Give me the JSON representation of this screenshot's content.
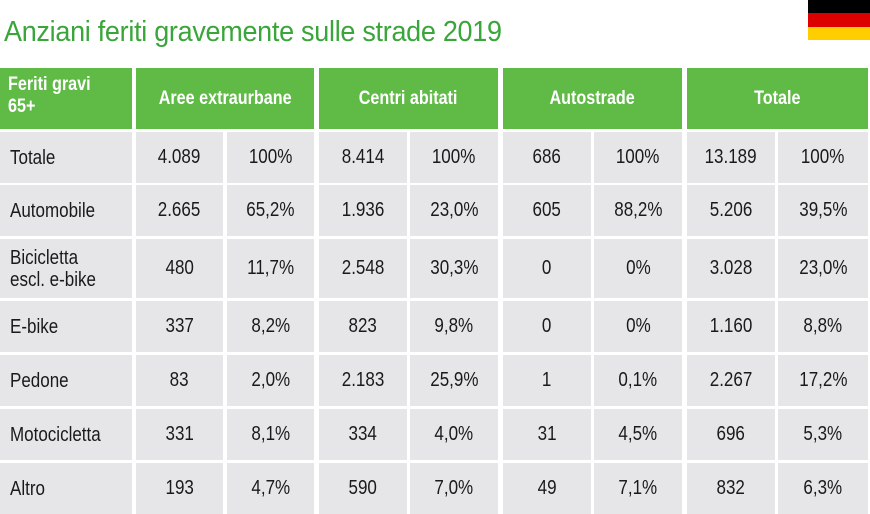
{
  "title": "Anziani feriti gravemente sulle strade 2019",
  "flag_colors": [
    "#000000",
    "#dd0000",
    "#ffce00"
  ],
  "accent_color": "#5fbb46",
  "header": {
    "label": "Feriti gravi 65+",
    "groups": [
      "Aree extraurbane",
      "Centri abitati",
      "Autostrade",
      "Totale"
    ]
  },
  "rows": [
    {
      "label": "Totale",
      "values": [
        "4.089",
        "100%",
        "8.414",
        "100%",
        "686",
        "100%",
        "13.189",
        "100%"
      ]
    },
    {
      "label": "Automobile",
      "values": [
        "2.665",
        "65,2%",
        "1.936",
        "23,0%",
        "605",
        "88,2%",
        "5.206",
        "39,5%"
      ]
    },
    {
      "label": "Bicicletta escl. e-bike",
      "values": [
        "480",
        "11,7%",
        "2.548",
        "30,3%",
        "0",
        "0%",
        "3.028",
        "23,0%"
      ]
    },
    {
      "label": "E-bike",
      "values": [
        "337",
        "8,2%",
        "823",
        "9,8%",
        "0",
        "0%",
        "1.160",
        "8,8%"
      ]
    },
    {
      "label": "Pedone",
      "values": [
        "83",
        "2,0%",
        "2.183",
        "25,9%",
        "1",
        "0,1%",
        "2.267",
        "17,2%"
      ]
    },
    {
      "label": "Motocicletta",
      "values": [
        "331",
        "8,1%",
        "334",
        "4,0%",
        "31",
        "4,5%",
        "696",
        "5,3%"
      ]
    },
    {
      "label": "Altro",
      "values": [
        "193",
        "4,7%",
        "590",
        "7,0%",
        "49",
        "7,1%",
        "832",
        "6,3%"
      ]
    }
  ]
}
